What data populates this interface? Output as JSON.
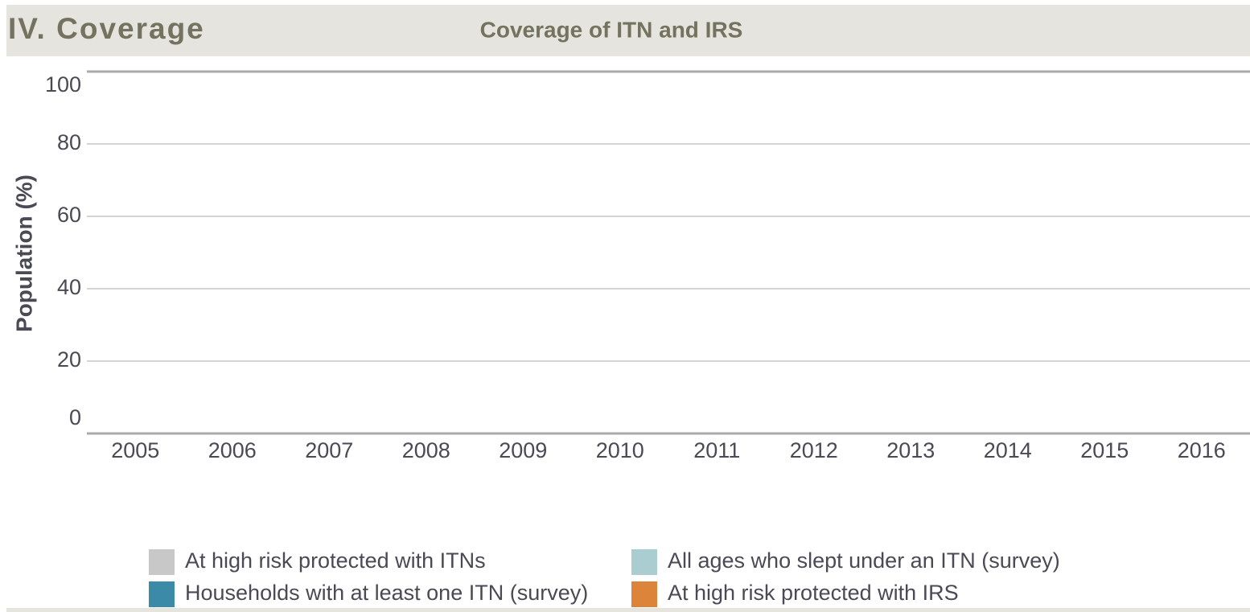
{
  "header": {
    "section": "IV. Coverage"
  },
  "chart_data": {
    "type": "bar",
    "title": "Coverage of ITN and IRS",
    "y_label": "Population (%)",
    "categories": [
      "2005",
      "2006",
      "2007",
      "2008",
      "2009",
      "2010",
      "2011",
      "2012",
      "2013",
      "2014",
      "2015",
      "2016"
    ],
    "series": [
      {
        "name": "At high risk protected with ITNs",
        "color": "#c8c8c8",
        "values": [
          null,
          null,
          null,
          null,
          null,
          null,
          null,
          null,
          null,
          null,
          null,
          null
        ]
      },
      {
        "name": "All ages who slept under an ITN (survey)",
        "color": "#a9cdd0",
        "values": [
          null,
          null,
          null,
          null,
          null,
          null,
          null,
          null,
          null,
          null,
          null,
          null
        ]
      },
      {
        "name": "Households with at least one ITN (survey)",
        "color": "#3a8aa8",
        "values": [
          null,
          null,
          null,
          null,
          null,
          null,
          null,
          null,
          null,
          null,
          null,
          null
        ]
      },
      {
        "name": "At high risk protected with IRS",
        "color": "#dc853a",
        "values": [
          null,
          null,
          null,
          null,
          null,
          null,
          null,
          null,
          null,
          null,
          null,
          null
        ]
      }
    ],
    "ylim": [
      0,
      100
    ],
    "yticks": [
      0,
      20,
      40,
      60,
      80,
      100
    ],
    "grid": true
  }
}
